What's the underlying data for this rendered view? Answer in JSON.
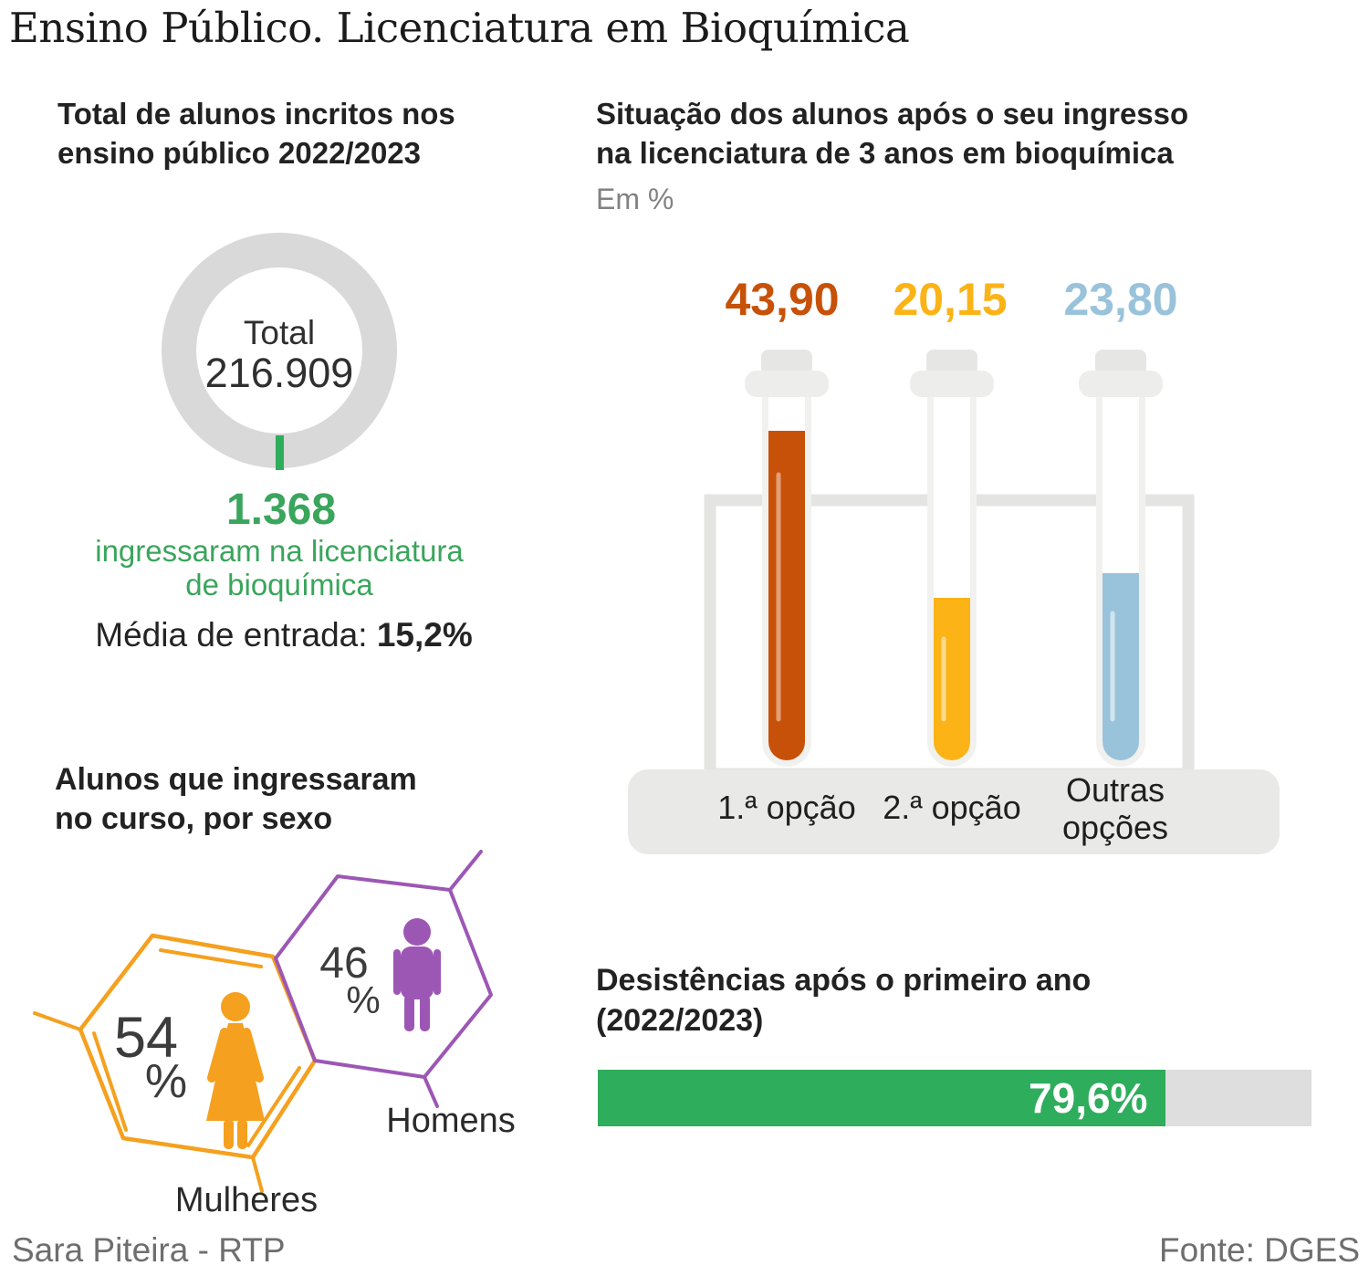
{
  "title": "Ensino Público. Licenciatura em Bioquímica",
  "footer": {
    "author": "Sara Piteira - RTP",
    "source": "Fonte: DGES"
  },
  "colors": {
    "green_bar": "#2ead5c",
    "green_text": "#3aa55c",
    "orange_tube": "#c75108",
    "yellow_tube": "#fbb316",
    "blue_tube": "#99c3da",
    "hex_orange": "#f5a01e",
    "hex_purple": "#9c57b5",
    "ring_gray": "#d9d9d9",
    "track_gray": "#dedede"
  },
  "enrolled_section": {
    "heading_lines": [
      "Total de alunos incritos nos",
      "ensino público 2022/2023"
    ],
    "donut_center_label": "Total",
    "donut_center_value": "216.909",
    "highlight_value": "1.368",
    "highlight_lines": [
      "ingressaram na licenciatura",
      "de bioquímica"
    ],
    "average_label": "Média de entrada: ",
    "average_value": "15,2%"
  },
  "situation_section": {
    "heading_lines": [
      "Situação dos alunos após o seu ingresso",
      "na licenciatura de 3 anos em bioquímica"
    ],
    "unit_label": "Em %",
    "tubes": [
      {
        "value": "43,90",
        "label": "1.ª opção"
      },
      {
        "value": "20,15",
        "label": "2.ª opção"
      },
      {
        "value": "23,80",
        "label_line1": "Outras",
        "label_line2": "opções"
      }
    ]
  },
  "sex_section": {
    "heading_lines": [
      "Alunos que ingressaram",
      "no curso, por sexo"
    ],
    "female": {
      "value": "54",
      "percent_sign": "%",
      "label": "Mulheres"
    },
    "male": {
      "value": "46",
      "percent_sign": "%",
      "label": "Homens"
    }
  },
  "dropout_section": {
    "heading_lines": [
      "Desistências após o primeiro ano",
      "(2022/2023)"
    ],
    "bar_value": "79,6%",
    "bar_percent": 79.6
  },
  "chart_data": [
    {
      "type": "pie",
      "style": "donut-highlight",
      "title": "Total de alunos incritos nos ensino público 2022/2023",
      "center_label": "Total",
      "total": 216909,
      "highlight_segment": {
        "label": "ingressaram na licenciatura de bioquímica",
        "value": 1368,
        "color": "#3aa55c"
      },
      "remainder_color": "#d9d9d9",
      "note": "Média de entrada: 15,2%"
    },
    {
      "type": "bar",
      "style": "test-tubes",
      "title": "Situação dos alunos após o seu ingresso na licenciatura de 3 anos em bioquímica",
      "unit": "Em %",
      "categories": [
        "1.ª opção",
        "2.ª opção",
        "Outras opções"
      ],
      "values": [
        43.9,
        20.15,
        23.8
      ],
      "colors": [
        "#c75108",
        "#fbb316",
        "#99c3da"
      ],
      "ylim": [
        0,
        50
      ]
    },
    {
      "type": "pie",
      "style": "hexagons",
      "title": "Alunos que ingressaram no curso, por sexo",
      "categories": [
        "Mulheres",
        "Homens"
      ],
      "values": [
        54,
        46
      ],
      "unit": "%",
      "colors": [
        "#f5a01e",
        "#9c57b5"
      ]
    },
    {
      "type": "bar",
      "style": "progress",
      "title": "Desistências após o primeiro ano (2022/2023)",
      "categories": [
        "Desistências"
      ],
      "values": [
        79.6
      ],
      "unit": "%",
      "xlim": [
        0,
        100
      ],
      "color": "#2ead5c"
    }
  ]
}
